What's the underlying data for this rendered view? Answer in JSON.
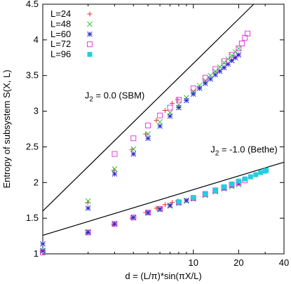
{
  "chart_data": {
    "type": "scatter",
    "xlabel": "d = (L/π)*sin(πX/L)",
    "ylabel": "Entropy of subsystem S(X, L)",
    "x_scale": "log",
    "xlim": [
      1,
      40
    ],
    "ylim": [
      1,
      4.5
    ],
    "x_ticks": [
      10,
      20,
      40
    ],
    "y_ticks": [
      1,
      1.5,
      2,
      2.5,
      3,
      3.5,
      4,
      4.5
    ],
    "grid": false,
    "legend_position": "top-left",
    "annotations": [
      {
        "text": "J",
        "sub": "2",
        "rest": " = 0.0 (SBM)",
        "x": 1.9,
        "y": 3.18
      },
      {
        "text": "J",
        "sub": "2",
        "rest": " = -1.0 (Bethe)",
        "x": 13.0,
        "y": 2.42
      }
    ],
    "fit_lines": [
      {
        "intercept": 1.6,
        "slope_per_log10": 2.07
      },
      {
        "intercept": 1.26,
        "slope_per_log10": 0.64
      }
    ],
    "series": [
      {
        "name": "L=24",
        "marker": "plus",
        "color": "#e03030",
        "points": [
          [
            1,
            1.05
          ],
          [
            1.99,
            1.72
          ],
          [
            2.96,
            2.17
          ],
          [
            3.91,
            2.46
          ],
          [
            4.82,
            2.68
          ],
          [
            5.68,
            2.87
          ],
          [
            6.49,
            3.01
          ],
          [
            7.23,
            3.11
          ],
          [
            7.88,
            3.16
          ],
          [
            1.99,
            1.3
          ],
          [
            2.96,
            1.41
          ],
          [
            3.91,
            1.5
          ],
          [
            4.82,
            1.58
          ],
          [
            5.68,
            1.64
          ],
          [
            6.49,
            1.69
          ],
          [
            7.23,
            1.72
          ],
          [
            7.88,
            1.74
          ]
        ]
      },
      {
        "name": "L=48",
        "marker": "x",
        "color": "#30c030",
        "points": [
          [
            1,
            1.05
          ],
          [
            2,
            1.74
          ],
          [
            3,
            2.19
          ],
          [
            4,
            2.47
          ],
          [
            5,
            2.68
          ],
          [
            6,
            2.85
          ],
          [
            7,
            2.98
          ],
          [
            8,
            3.09
          ],
          [
            9,
            3.19
          ],
          [
            10,
            3.28
          ],
          [
            11,
            3.36
          ],
          [
            12,
            3.43
          ],
          [
            13,
            3.5
          ],
          [
            14,
            3.56
          ],
          [
            15,
            3.62
          ],
          [
            16,
            3.68
          ],
          [
            17,
            3.73
          ],
          [
            18,
            3.78
          ],
          [
            19,
            3.83
          ],
          [
            20,
            3.88
          ],
          [
            2,
            1.31
          ],
          [
            3,
            1.42
          ],
          [
            4,
            1.51
          ],
          [
            5,
            1.57
          ],
          [
            6,
            1.62
          ],
          [
            7,
            1.67
          ],
          [
            8,
            1.71
          ],
          [
            9,
            1.74
          ],
          [
            10,
            1.77
          ],
          [
            12,
            1.82
          ],
          [
            14,
            1.87
          ],
          [
            16,
            1.91
          ],
          [
            18,
            1.94
          ],
          [
            20,
            1.97
          ]
        ]
      },
      {
        "name": "L=60",
        "marker": "star",
        "color": "#2a2ad0",
        "points": [
          [
            1,
            1.14
          ],
          [
            2,
            1.64
          ],
          [
            3,
            2.12
          ],
          [
            4,
            2.4
          ],
          [
            5,
            2.62
          ],
          [
            6,
            2.79
          ],
          [
            7,
            2.93
          ],
          [
            8,
            3.05
          ],
          [
            9,
            3.15
          ],
          [
            10,
            3.24
          ],
          [
            11,
            3.32
          ],
          [
            12,
            3.39
          ],
          [
            13,
            3.45
          ],
          [
            14,
            3.51
          ],
          [
            15,
            3.56
          ],
          [
            16,
            3.61
          ],
          [
            17,
            3.66
          ],
          [
            18,
            3.71
          ],
          [
            19,
            3.75
          ],
          [
            20,
            3.79
          ],
          [
            1,
            1.04
          ],
          [
            2,
            1.3
          ],
          [
            3,
            1.42
          ],
          [
            4,
            1.51
          ],
          [
            5,
            1.58
          ],
          [
            6,
            1.63
          ],
          [
            7,
            1.68
          ],
          [
            8,
            1.72
          ],
          [
            9,
            1.75
          ],
          [
            10,
            1.78
          ],
          [
            12,
            1.83
          ],
          [
            14,
            1.88
          ],
          [
            16,
            1.92
          ],
          [
            18,
            1.96
          ],
          [
            20,
            1.99
          ]
        ]
      },
      {
        "name": "L=72",
        "marker": "square",
        "color": "#e040e0",
        "points": [
          [
            3,
            2.4
          ],
          [
            4,
            2.62
          ],
          [
            5,
            2.8
          ],
          [
            6,
            2.94
          ],
          [
            7,
            3.05
          ],
          [
            8,
            3.16
          ],
          [
            10,
            3.32
          ],
          [
            12,
            3.47
          ],
          [
            14,
            3.59
          ],
          [
            16,
            3.7
          ],
          [
            18,
            3.79
          ],
          [
            20,
            3.88
          ],
          [
            21,
            3.95
          ],
          [
            22,
            4.03
          ],
          [
            22.9,
            4.09
          ],
          [
            1,
            1.02
          ],
          [
            2,
            1.3
          ],
          [
            3,
            1.42
          ],
          [
            4,
            1.51
          ],
          [
            5,
            1.58
          ],
          [
            6,
            1.63
          ],
          [
            8,
            1.72
          ],
          [
            10,
            1.78
          ],
          [
            12,
            1.84
          ],
          [
            14,
            1.89
          ],
          [
            16,
            1.93
          ],
          [
            18,
            1.97
          ],
          [
            20,
            2.0
          ],
          [
            22,
            2.03
          ]
        ]
      },
      {
        "name": "L=96",
        "marker": "filled-square",
        "color": "#20d0e0",
        "points": [
          [
            8,
            1.73
          ],
          [
            10,
            1.79
          ],
          [
            12,
            1.84
          ],
          [
            14,
            1.89
          ],
          [
            16,
            1.94
          ],
          [
            18,
            1.98
          ],
          [
            20,
            2.02
          ],
          [
            22,
            2.05
          ],
          [
            24,
            2.08
          ],
          [
            26,
            2.11
          ],
          [
            28,
            2.14
          ],
          [
            30,
            2.16
          ],
          [
            30.5,
            2.17
          ]
        ]
      }
    ]
  }
}
